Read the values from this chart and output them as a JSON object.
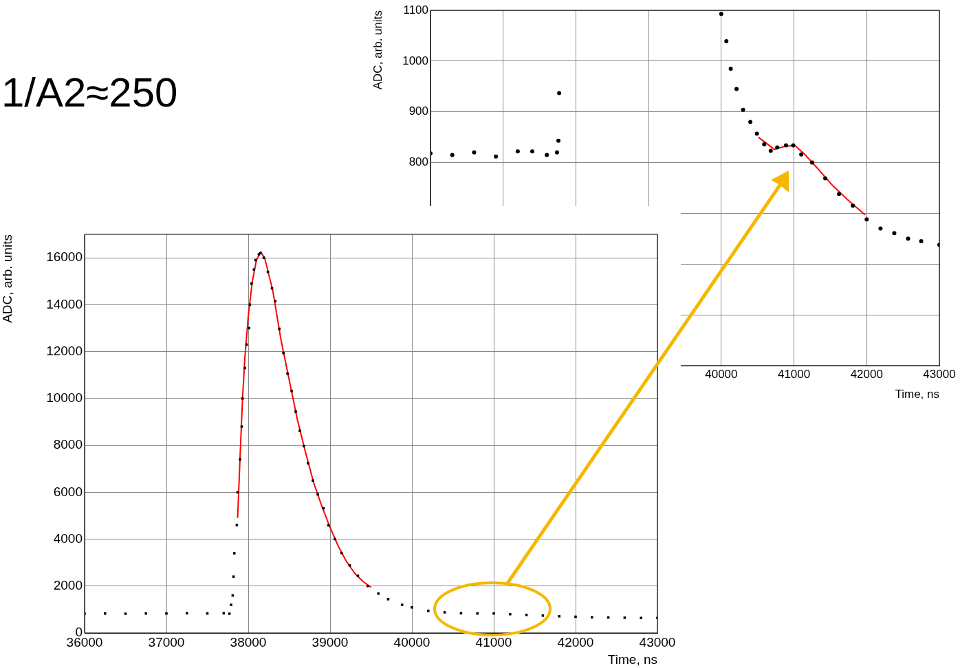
{
  "chart_data": [
    {
      "type": "scatter",
      "annotations": [
        "1/A2≈250"
      ],
      "xlabel": "Time, ns",
      "ylabel": "ADC, arb. units",
      "xlim": [
        36000,
        43000
      ],
      "ylim": [
        0,
        17000
      ],
      "xticks": [
        36000,
        37000,
        38000,
        39000,
        40000,
        41000,
        42000,
        43000
      ],
      "yticks": [
        0,
        2000,
        4000,
        6000,
        8000,
        10000,
        12000,
        14000,
        16000
      ],
      "grid": true,
      "series": [
        {
          "type": "scatter",
          "marker": "square",
          "color": "#000000",
          "x": [
            36000,
            36250,
            36500,
            36750,
            37000,
            37250,
            37500,
            37700,
            37770,
            37790,
            37810,
            37820,
            37830,
            37860,
            37870,
            37900,
            37920,
            37930,
            37960,
            37980,
            38010,
            38020,
            38040,
            38070,
            38090,
            38130,
            38150,
            38190,
            38240,
            38290,
            38330,
            38380,
            38430,
            38480,
            38530,
            38580,
            38630,
            38680,
            38730,
            38790,
            38850,
            38920,
            38980,
            39060,
            39140,
            39240,
            39340,
            39460,
            39590,
            39710,
            39880,
            40000,
            40200,
            40400,
            40600,
            40800,
            41000,
            41200,
            41400,
            41600,
            41800,
            42000,
            42200,
            42400,
            42600,
            42800,
            43000
          ],
          "values": [
            820,
            830,
            820,
            830,
            830,
            840,
            830,
            840,
            820,
            1200,
            1600,
            2400,
            3400,
            4600,
            6000,
            7400,
            8800,
            10000,
            11300,
            12300,
            13000,
            14000,
            14900,
            15500,
            15900,
            16150,
            16200,
            16000,
            15400,
            14700,
            14150,
            12970,
            11940,
            11060,
            10320,
            9440,
            8620,
            7970,
            7240,
            6500,
            5910,
            5320,
            4590,
            4000,
            3410,
            2880,
            2440,
            2000,
            1680,
            1440,
            1200,
            1090,
            940,
            880,
            840,
            830,
            830,
            800,
            770,
            740,
            710,
            690,
            670,
            660,
            650,
            640,
            640
          ]
        },
        {
          "type": "line",
          "marker": "none",
          "color": "#ff0000",
          "x": [
            37870,
            37900,
            37930,
            37960,
            38000,
            38050,
            38100,
            38150,
            38200,
            38300,
            38400,
            38500,
            38600,
            38700,
            38800,
            38900,
            39000,
            39100,
            39200,
            39300,
            39400,
            39500
          ],
          "values": [
            4900,
            7500,
            10000,
            11800,
            13500,
            15000,
            15900,
            16250,
            16000,
            14600,
            12500,
            10800,
            9100,
            7700,
            6400,
            5400,
            4500,
            3700,
            3050,
            2550,
            2200,
            1950
          ]
        }
      ]
    },
    {
      "type": "scatter",
      "xlabel": "Time, ns",
      "ylabel": "ADC, arb. units",
      "xlim": [
        36000,
        43000
      ],
      "ylim": [
        400,
        1100
      ],
      "xticks": [
        {
          "value": 36000,
          "label": null
        },
        {
          "value": 37000,
          "label": null
        },
        {
          "value": 38000,
          "label": null
        },
        {
          "value": 39000,
          "label": null
        },
        40000,
        41000,
        42000,
        43000
      ],
      "yticks": [
        {
          "value": 400,
          "label": null
        },
        {
          "value": 500,
          "label": null
        },
        {
          "value": 600,
          "label": null
        },
        {
          "value": 700,
          "label": null
        },
        800,
        900,
        1000,
        1100
      ],
      "grid": true,
      "series": [
        {
          "type": "scatter",
          "marker": "circle",
          "color": "#000000",
          "x": [
            36000,
            36300,
            36600,
            36900,
            37200,
            37400,
            37600,
            37740,
            37760,
            37770,
            40000,
            40070,
            40130,
            40210,
            40300,
            40400,
            40490,
            40590,
            40680,
            40770,
            40890,
            40990,
            41100,
            41250,
            41430,
            41620,
            41810,
            42000,
            42190,
            42380,
            42570,
            42750,
            43000
          ],
          "values": [
            818,
            815,
            820,
            812,
            822,
            822,
            815,
            820,
            843,
            937,
            1093,
            1039,
            985,
            945,
            904,
            880,
            857,
            836,
            823,
            830,
            834,
            834,
            816,
            800,
            769,
            738,
            715,
            688,
            670,
            661,
            650,
            645,
            638
          ]
        },
        {
          "type": "line",
          "marker": "none",
          "color": "#ff0000",
          "x": [
            40510,
            40730,
            40870,
            41010,
            41150,
            41340,
            41530,
            41760,
            41980
          ],
          "values": [
            850,
            826,
            832,
            834,
            816,
            786,
            755,
            724,
            697
          ]
        }
      ]
    }
  ]
}
